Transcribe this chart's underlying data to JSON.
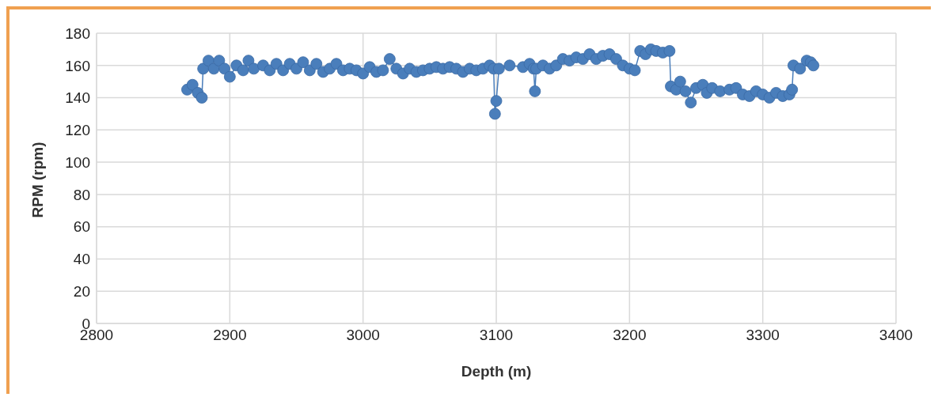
{
  "chart_data": {
    "type": "line",
    "xlabel": "Depth (m)",
    "ylabel": "RPM (rpm)",
    "x": [
      2868,
      2872,
      2876,
      2879,
      2880,
      2884,
      2888,
      2892,
      2896,
      2900,
      2905,
      2910,
      2914,
      2918,
      2925,
      2930,
      2935,
      2940,
      2945,
      2950,
      2955,
      2960,
      2965,
      2970,
      2975,
      2980,
      2985,
      2990,
      2995,
      3000,
      3005,
      3010,
      3015,
      3020,
      3025,
      3030,
      3035,
      3040,
      3045,
      3050,
      3055,
      3060,
      3065,
      3070,
      3075,
      3080,
      3085,
      3090,
      3095,
      3098,
      3099,
      3100,
      3102,
      3110,
      3120,
      3125,
      3128,
      3129,
      3130,
      3135,
      3140,
      3145,
      3150,
      3155,
      3160,
      3165,
      3170,
      3175,
      3180,
      3185,
      3190,
      3195,
      3200,
      3204,
      3208,
      3212,
      3216,
      3220,
      3225,
      3230,
      3231,
      3235,
      3238,
      3242,
      3246,
      3250,
      3255,
      3258,
      3262,
      3268,
      3275,
      3280,
      3285,
      3290,
      3295,
      3300,
      3305,
      3310,
      3315,
      3320,
      3322,
      3323,
      3328,
      3333,
      3336,
      3338
    ],
    "series": [
      {
        "color": "#4a7ebb",
        "values": [
          145,
          148,
          143,
          140,
          158,
          163,
          158,
          163,
          158,
          153,
          160,
          157,
          163,
          158,
          160,
          157,
          161,
          157,
          161,
          158,
          162,
          157,
          161,
          156,
          158,
          161,
          157,
          158,
          157,
          155,
          159,
          156,
          157,
          164,
          158,
          155,
          158,
          156,
          157,
          158,
          159,
          158,
          159,
          158,
          156,
          158,
          157,
          158,
          160,
          158,
          130,
          138,
          158,
          160,
          159,
          161,
          158,
          144,
          158,
          160,
          158,
          160,
          164,
          163,
          165,
          164,
          167,
          164,
          166,
          167,
          164,
          160,
          158,
          157,
          169,
          167,
          170,
          169,
          168,
          169,
          147,
          145,
          150,
          144,
          137,
          146,
          148,
          143,
          146,
          144,
          145,
          146,
          142,
          141,
          144,
          142,
          140,
          143,
          141,
          142,
          145,
          160,
          158,
          163,
          162,
          160
        ]
      }
    ],
    "xlim": [
      2800,
      3400
    ],
    "xticks": [
      2800,
      2900,
      3000,
      3100,
      3200,
      3300,
      3400
    ],
    "ylim": [
      0,
      180
    ],
    "yticks": [
      0,
      20,
      40,
      60,
      80,
      100,
      120,
      140,
      160,
      180
    ],
    "grid": true,
    "legend": false,
    "marker": "circle",
    "line_style": "solid"
  }
}
